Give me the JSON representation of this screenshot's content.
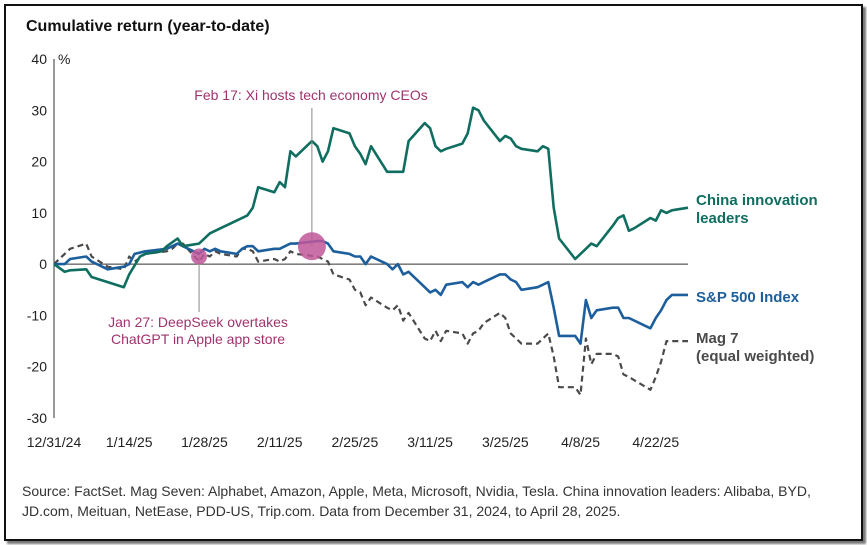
{
  "colors": {
    "china": "#0f6e60",
    "sp500": "#1d5f9c",
    "mag7": "#4a4a4a",
    "annotation": "#a0336e",
    "marker": "#c0579a"
  },
  "chart_data": {
    "type": "line",
    "title": "Cumulative return (year-to-date)",
    "ylabel": "%",
    "xlabel": "",
    "ylim": [
      -30,
      40
    ],
    "yticks": [
      40,
      30,
      20,
      10,
      0,
      -10,
      -20,
      -30
    ],
    "x_tick_labels": [
      "12/31/24",
      "1/14/25",
      "1/28/25",
      "2/11/25",
      "2/25/25",
      "3/11/25",
      "3/25/25",
      "4/8/25",
      "4/22/25"
    ],
    "xlim": [
      "2024-12-31",
      "2025-04-28"
    ],
    "grid": false,
    "series": [
      {
        "name": "China innovation leaders",
        "label_lines": [
          "China innovation",
          "leaders"
        ],
        "style": "solid",
        "points": [
          [
            "2024-12-31",
            0
          ],
          [
            "2025-01-02",
            -1.5
          ],
          [
            "2025-01-03",
            -1.2
          ],
          [
            "2025-01-06",
            -1.0
          ],
          [
            "2025-01-07",
            -2.5
          ],
          [
            "2025-01-10",
            -3.5
          ],
          [
            "2025-01-13",
            -4.5
          ],
          [
            "2025-01-14",
            -2.0
          ],
          [
            "2025-01-16",
            1.5
          ],
          [
            "2025-01-17",
            2.0
          ],
          [
            "2025-01-20",
            2.5
          ],
          [
            "2025-01-21",
            3.5
          ],
          [
            "2025-01-23",
            5.0
          ],
          [
            "2025-01-24",
            3.5
          ],
          [
            "2025-01-27",
            4.0
          ],
          [
            "2025-01-29",
            6.0
          ],
          [
            "2025-01-31",
            7.0
          ],
          [
            "2025-02-03",
            8.5
          ],
          [
            "2025-02-05",
            9.5
          ],
          [
            "2025-02-06",
            11.0
          ],
          [
            "2025-02-07",
            15.0
          ],
          [
            "2025-02-10",
            14.0
          ],
          [
            "2025-02-11",
            16.0
          ],
          [
            "2025-02-12",
            15.0
          ],
          [
            "2025-02-13",
            22.0
          ],
          [
            "2025-02-14",
            21.0
          ],
          [
            "2025-02-17",
            24.0
          ],
          [
            "2025-02-18",
            23.0
          ],
          [
            "2025-02-19",
            20.0
          ],
          [
            "2025-02-20",
            22.0
          ],
          [
            "2025-02-21",
            26.5
          ],
          [
            "2025-02-24",
            25.5
          ],
          [
            "2025-02-25",
            23.0
          ],
          [
            "2025-02-26",
            21.5
          ],
          [
            "2025-02-27",
            19.5
          ],
          [
            "2025-02-28",
            23.0
          ],
          [
            "2025-03-03",
            18.0
          ],
          [
            "2025-03-04",
            18.0
          ],
          [
            "2025-03-05",
            18.0
          ],
          [
            "2025-03-06",
            18.0
          ],
          [
            "2025-03-07",
            24.0
          ],
          [
            "2025-03-10",
            27.5
          ],
          [
            "2025-03-11",
            26.5
          ],
          [
            "2025-03-12",
            23.0
          ],
          [
            "2025-03-13",
            22.0
          ],
          [
            "2025-03-14",
            22.5
          ],
          [
            "2025-03-17",
            23.5
          ],
          [
            "2025-03-18",
            25.5
          ],
          [
            "2025-03-19",
            30.5
          ],
          [
            "2025-03-20",
            30.0
          ],
          [
            "2025-03-21",
            28.0
          ],
          [
            "2025-03-24",
            24.0
          ],
          [
            "2025-03-25",
            25.0
          ],
          [
            "2025-03-26",
            24.5
          ],
          [
            "2025-03-27",
            23.0
          ],
          [
            "2025-03-28",
            22.5
          ],
          [
            "2025-03-31",
            22.0
          ],
          [
            "2025-04-01",
            23.0
          ],
          [
            "2025-04-02",
            22.5
          ],
          [
            "2025-04-03",
            11.0
          ],
          [
            "2025-04-04",
            5.0
          ],
          [
            "2025-04-07",
            1.0
          ],
          [
            "2025-04-08",
            2.0
          ],
          [
            "2025-04-09",
            3.0
          ],
          [
            "2025-04-10",
            4.0
          ],
          [
            "2025-04-11",
            3.5
          ],
          [
            "2025-04-14",
            7.5
          ],
          [
            "2025-04-15",
            9.0
          ],
          [
            "2025-04-16",
            9.5
          ],
          [
            "2025-04-17",
            6.5
          ],
          [
            "2025-04-18",
            7.0
          ],
          [
            "2025-04-21",
            9.0
          ],
          [
            "2025-04-22",
            8.5
          ],
          [
            "2025-04-23",
            10.5
          ],
          [
            "2025-04-24",
            10.0
          ],
          [
            "2025-04-25",
            10.5
          ],
          [
            "2025-04-28",
            11.0
          ]
        ]
      },
      {
        "name": "S&P 500 Index",
        "label_lines": [
          "S&P 500 Index"
        ],
        "style": "solid",
        "points": [
          [
            "2024-12-31",
            0
          ],
          [
            "2025-01-02",
            0.0
          ],
          [
            "2025-01-03",
            1.0
          ],
          [
            "2025-01-06",
            1.5
          ],
          [
            "2025-01-07",
            0.5
          ],
          [
            "2025-01-10",
            -1.0
          ],
          [
            "2025-01-13",
            -0.5
          ],
          [
            "2025-01-14",
            0.0
          ],
          [
            "2025-01-15",
            2.0
          ],
          [
            "2025-01-17",
            2.5
          ],
          [
            "2025-01-21",
            3.0
          ],
          [
            "2025-01-22",
            3.5
          ],
          [
            "2025-01-23",
            4.0
          ],
          [
            "2025-01-24",
            3.5
          ],
          [
            "2025-01-27",
            2.0
          ],
          [
            "2025-01-28",
            3.0
          ],
          [
            "2025-01-29",
            2.5
          ],
          [
            "2025-01-30",
            3.0
          ],
          [
            "2025-01-31",
            2.5
          ],
          [
            "2025-02-03",
            2.0
          ],
          [
            "2025-02-04",
            3.0
          ],
          [
            "2025-02-05",
            3.5
          ],
          [
            "2025-02-06",
            3.5
          ],
          [
            "2025-02-07",
            2.5
          ],
          [
            "2025-02-10",
            3.0
          ],
          [
            "2025-02-11",
            3.0
          ],
          [
            "2025-02-12",
            3.5
          ],
          [
            "2025-02-13",
            4.0
          ],
          [
            "2025-02-14",
            4.0
          ],
          [
            "2025-02-18",
            4.5
          ],
          [
            "2025-02-19",
            4.5
          ],
          [
            "2025-02-20",
            4.0
          ],
          [
            "2025-02-21",
            2.5
          ],
          [
            "2025-02-24",
            2.0
          ],
          [
            "2025-02-25",
            1.5
          ],
          [
            "2025-02-26",
            1.5
          ],
          [
            "2025-02-27",
            0.0
          ],
          [
            "2025-02-28",
            1.5
          ],
          [
            "2025-03-03",
            0.0
          ],
          [
            "2025-03-04",
            -1.0
          ],
          [
            "2025-03-05",
            0.0
          ],
          [
            "2025-03-06",
            -2.0
          ],
          [
            "2025-03-07",
            -1.5
          ],
          [
            "2025-03-10",
            -4.5
          ],
          [
            "2025-03-11",
            -5.5
          ],
          [
            "2025-03-12",
            -5.0
          ],
          [
            "2025-03-13",
            -6.0
          ],
          [
            "2025-03-14",
            -4.0
          ],
          [
            "2025-03-17",
            -3.5
          ],
          [
            "2025-03-18",
            -4.5
          ],
          [
            "2025-03-19",
            -3.5
          ],
          [
            "2025-03-20",
            -4.0
          ],
          [
            "2025-03-21",
            -3.5
          ],
          [
            "2025-03-24",
            -2.0
          ],
          [
            "2025-03-25",
            -2.0
          ],
          [
            "2025-03-26",
            -3.0
          ],
          [
            "2025-03-27",
            -3.5
          ],
          [
            "2025-03-28",
            -5.0
          ],
          [
            "2025-03-31",
            -4.5
          ],
          [
            "2025-04-01",
            -4.0
          ],
          [
            "2025-04-02",
            -3.5
          ],
          [
            "2025-04-03",
            -8.5
          ],
          [
            "2025-04-04",
            -14.0
          ],
          [
            "2025-04-07",
            -14.0
          ],
          [
            "2025-04-08",
            -15.5
          ],
          [
            "2025-04-09",
            -7.0
          ],
          [
            "2025-04-10",
            -10.5
          ],
          [
            "2025-04-11",
            -9.0
          ],
          [
            "2025-04-14",
            -8.5
          ],
          [
            "2025-04-15",
            -8.5
          ],
          [
            "2025-04-16",
            -10.5
          ],
          [
            "2025-04-17",
            -10.5
          ],
          [
            "2025-04-21",
            -12.5
          ],
          [
            "2025-04-22",
            -10.5
          ],
          [
            "2025-04-23",
            -9.0
          ],
          [
            "2025-04-24",
            -7.0
          ],
          [
            "2025-04-25",
            -6.0
          ],
          [
            "2025-04-28",
            -6.0
          ]
        ]
      },
      {
        "name": "Mag 7 (equal weighted)",
        "label_lines": [
          "Mag 7",
          "(equal weighted)"
        ],
        "style": "dashed",
        "points": [
          [
            "2024-12-31",
            0
          ],
          [
            "2025-01-02",
            2.0
          ],
          [
            "2025-01-03",
            3.0
          ],
          [
            "2025-01-06",
            4.0
          ],
          [
            "2025-01-07",
            1.5
          ],
          [
            "2025-01-10",
            -0.5
          ],
          [
            "2025-01-13",
            -1.0
          ],
          [
            "2025-01-14",
            1.5
          ],
          [
            "2025-01-15",
            0.5
          ],
          [
            "2025-01-17",
            2.0
          ],
          [
            "2025-01-21",
            2.5
          ],
          [
            "2025-01-22",
            3.0
          ],
          [
            "2025-01-23",
            4.0
          ],
          [
            "2025-01-24",
            4.0
          ],
          [
            "2025-01-27",
            0.5
          ],
          [
            "2025-01-28",
            2.0
          ],
          [
            "2025-01-29",
            1.5
          ],
          [
            "2025-01-30",
            2.5
          ],
          [
            "2025-01-31",
            2.0
          ],
          [
            "2025-02-03",
            1.5
          ],
          [
            "2025-02-04",
            3.0
          ],
          [
            "2025-02-05",
            3.0
          ],
          [
            "2025-02-06",
            2.5
          ],
          [
            "2025-02-07",
            0.5
          ],
          [
            "2025-02-10",
            1.0
          ],
          [
            "2025-02-11",
            0.5
          ],
          [
            "2025-02-12",
            1.0
          ],
          [
            "2025-02-13",
            2.5
          ],
          [
            "2025-02-14",
            2.0
          ],
          [
            "2025-02-18",
            1.5
          ],
          [
            "2025-02-19",
            1.0
          ],
          [
            "2025-02-20",
            0.5
          ],
          [
            "2025-02-21",
            -2.0
          ],
          [
            "2025-02-24",
            -3.0
          ],
          [
            "2025-02-25",
            -5.0
          ],
          [
            "2025-02-26",
            -5.5
          ],
          [
            "2025-02-27",
            -8.0
          ],
          [
            "2025-02-28",
            -6.5
          ],
          [
            "2025-03-03",
            -8.5
          ],
          [
            "2025-03-04",
            -9.0
          ],
          [
            "2025-03-05",
            -8.0
          ],
          [
            "2025-03-06",
            -11.0
          ],
          [
            "2025-03-07",
            -9.5
          ],
          [
            "2025-03-10",
            -14.5
          ],
          [
            "2025-03-11",
            -15.0
          ],
          [
            "2025-03-12",
            -13.0
          ],
          [
            "2025-03-13",
            -15.0
          ],
          [
            "2025-03-14",
            -13.0
          ],
          [
            "2025-03-17",
            -13.5
          ],
          [
            "2025-03-18",
            -15.5
          ],
          [
            "2025-03-19",
            -13.5
          ],
          [
            "2025-03-20",
            -13.0
          ],
          [
            "2025-03-21",
            -11.5
          ],
          [
            "2025-03-24",
            -9.5
          ],
          [
            "2025-03-25",
            -10.5
          ],
          [
            "2025-03-26",
            -13.5
          ],
          [
            "2025-03-27",
            -14.5
          ],
          [
            "2025-03-28",
            -15.5
          ],
          [
            "2025-03-31",
            -15.5
          ],
          [
            "2025-04-01",
            -14.5
          ],
          [
            "2025-04-02",
            -13.5
          ],
          [
            "2025-04-03",
            -18.0
          ],
          [
            "2025-04-04",
            -24.0
          ],
          [
            "2025-04-07",
            -24.0
          ],
          [
            "2025-04-08",
            -25.5
          ],
          [
            "2025-04-09",
            -14.5
          ],
          [
            "2025-04-10",
            -19.5
          ],
          [
            "2025-04-11",
            -17.5
          ],
          [
            "2025-04-14",
            -17.5
          ],
          [
            "2025-04-15",
            -18.0
          ],
          [
            "2025-04-16",
            -21.5
          ],
          [
            "2025-04-17",
            -22.0
          ],
          [
            "2025-04-21",
            -24.5
          ],
          [
            "2025-04-22",
            -22.0
          ],
          [
            "2025-04-23",
            -19.0
          ],
          [
            "2025-04-24",
            -15.0
          ],
          [
            "2025-04-25",
            -15.0
          ],
          [
            "2025-04-28",
            -15.0
          ]
        ]
      }
    ],
    "annotations": [
      {
        "date": "2025-01-27",
        "value": 1.5,
        "lines": [
          "Jan 27: DeepSeek overtakes",
          "ChatGPT in Apple app store"
        ]
      },
      {
        "date": "2025-02-17",
        "value": 3.5,
        "lines": [
          "Feb 17: Xi hosts tech economy CEOs"
        ]
      }
    ]
  },
  "source": "Source: FactSet. Mag Seven: Alphabet, Amazon, Apple, Meta, Microsoft, Nvidia, Tesla. China innovation leaders: Alibaba, BYD, JD.com, Meituan, NetEase, PDD-US, Trip.com. Data from December 31, 2024, to April 28, 2025."
}
